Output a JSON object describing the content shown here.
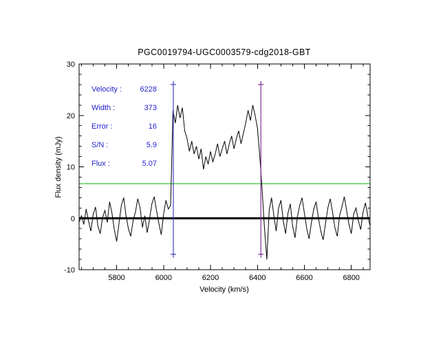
{
  "annotations": {
    "color": "#2222cc",
    "rows": [
      {
        "label": "Velocity :",
        "value": "6228"
      },
      {
        "label": "Width :",
        "value": "373"
      },
      {
        "label": "Error :",
        "value": "16"
      },
      {
        "label": "S/N :",
        "value": "5.9"
      },
      {
        "label": "Flux :",
        "value": "5.07"
      }
    ]
  },
  "chart_data": {
    "type": "line",
    "title": "PGC0019794-UGC0003579-cdg2018-GBT",
    "xlabel": "Velocity (km/s)",
    "ylabel": "Flux density (mJy)",
    "xlim": [
      5640,
      6880
    ],
    "ylim": [
      -10,
      30
    ],
    "x_ticks": [
      5800,
      6000,
      6200,
      6400,
      6600,
      6800
    ],
    "y_ticks": [
      -10,
      0,
      10,
      20,
      30
    ],
    "x_minor_step": 50,
    "y_minor_step": 2,
    "grid": false,
    "legend": "none",
    "baseline_y": 0,
    "threshold_line": {
      "y": 6.7,
      "color": "#00bb00"
    },
    "velocity_markers": [
      {
        "x": 6041.5,
        "y_bottom": -7,
        "y_top": 26,
        "color": "#4040c0"
      },
      {
        "x": 6414.5,
        "y_bottom": -7,
        "y_top": 26,
        "color": "#7b2f93"
      }
    ],
    "measurements": {
      "velocity_kms": 6228,
      "width_kms": 373,
      "error_kms": 16,
      "sn": 5.9,
      "flux_jykms": 5.07
    },
    "series": [
      {
        "name": "spectrum",
        "color": "#000000",
        "x_start": 5640,
        "x_step": 10,
        "values": [
          -0.8,
          0.5,
          -1.2,
          1.8,
          -0.5,
          -2.5,
          0.8,
          2.2,
          -1.5,
          -3.0,
          0.2,
          1.5,
          -0.8,
          3.2,
          1.0,
          -2.2,
          -4.5,
          -1.0,
          2.5,
          4.0,
          0.5,
          -2.0,
          -3.5,
          -0.5,
          1.2,
          3.8,
          2.0,
          -1.8,
          0.5,
          -2.8,
          -0.2,
          2.8,
          4.2,
          1.5,
          -1.0,
          -3.2,
          0.8,
          3.5,
          1.8,
          2.5,
          21.0,
          18.5,
          22.0,
          19.5,
          21.5,
          17.0,
          15.5,
          13.0,
          15.0,
          12.5,
          14.0,
          11.5,
          13.5,
          9.5,
          12.0,
          10.5,
          13.0,
          11.0,
          12.5,
          14.5,
          12.0,
          13.5,
          15.0,
          12.5,
          14.5,
          16.0,
          13.5,
          15.5,
          17.0,
          14.5,
          16.5,
          18.5,
          21.0,
          19.0,
          22.0,
          20.0,
          17.5,
          12.0,
          5.5,
          -2.0,
          -8.0,
          1.5,
          4.0,
          0.5,
          -2.5,
          2.0,
          3.5,
          -0.5,
          -3.0,
          1.0,
          2.8,
          -1.5,
          -3.8,
          0.2,
          2.5,
          4.0,
          1.0,
          -2.0,
          -4.0,
          -0.8,
          1.8,
          3.2,
          0.0,
          -2.5,
          -4.2,
          -1.0,
          2.0,
          3.8,
          1.2,
          -1.8,
          -3.5,
          0.5,
          2.2,
          4.2,
          1.5,
          -1.2,
          -3.0,
          0.8,
          2.0,
          -0.5,
          -2.2,
          1.2,
          3.0,
          0.5,
          -1.5
        ]
      }
    ]
  }
}
